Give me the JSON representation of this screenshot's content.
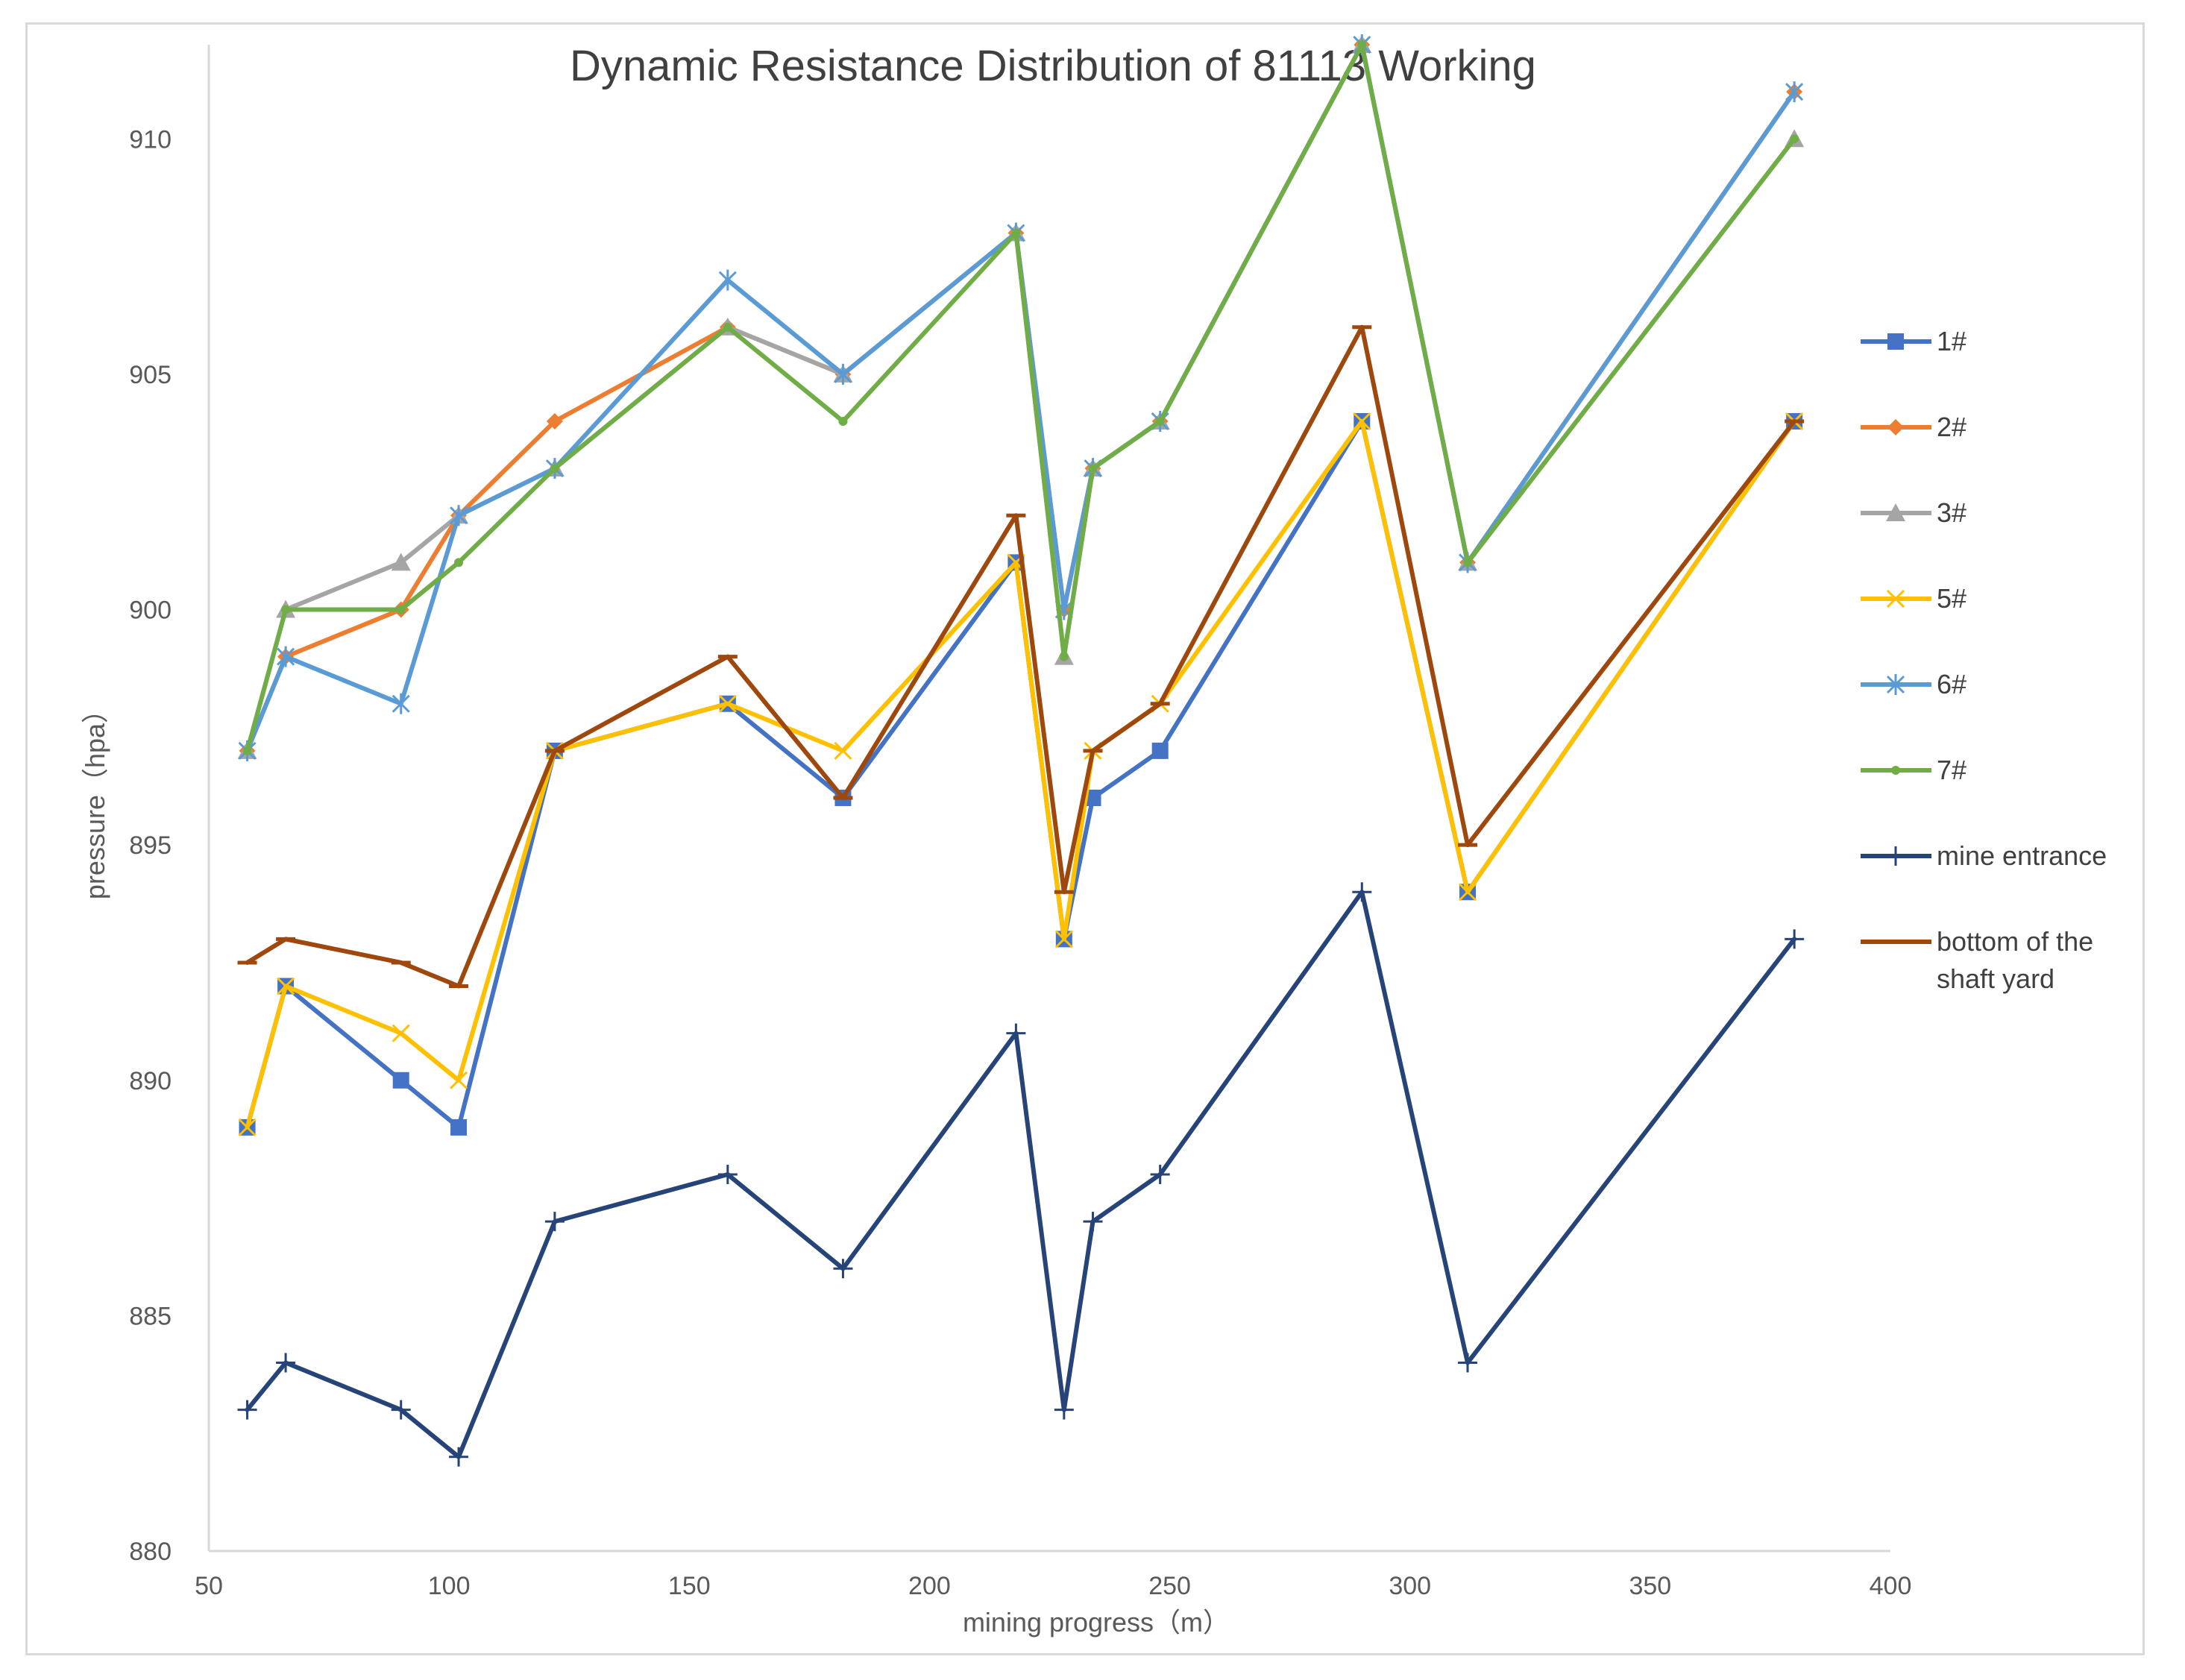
{
  "chart_data": {
    "type": "line",
    "title": "Dynamic Resistance Distribution of 81113 Working",
    "xlabel": "mining progress（m）",
    "ylabel": "pressure（hpa）",
    "xlim": [
      50,
      400
    ],
    "ylim": [
      880,
      912
    ],
    "xticks": [
      50,
      100,
      150,
      200,
      250,
      300,
      350,
      400
    ],
    "yticks": [
      880,
      885,
      890,
      895,
      900,
      905,
      910
    ],
    "grid": false,
    "legend_position": "right",
    "x": [
      58,
      66,
      90,
      102,
      122,
      158,
      182,
      218,
      228,
      234,
      248,
      290,
      312,
      380
    ],
    "series": [
      {
        "name": "1#",
        "color": "#4472c4",
        "marker": "square",
        "values": [
          889,
          892,
          890,
          889,
          897,
          898,
          896,
          901,
          893,
          896,
          897,
          904,
          894,
          904
        ]
      },
      {
        "name": "2#",
        "color": "#ed7d31",
        "marker": "diamond",
        "values": [
          897,
          899,
          900,
          902,
          904,
          906,
          905,
          908,
          900,
          903,
          904,
          912,
          901,
          911
        ]
      },
      {
        "name": "3#",
        "color": "#a5a5a5",
        "marker": "triangle",
        "values": [
          897,
          900,
          901,
          902,
          903,
          906,
          905,
          908,
          899,
          903,
          904,
          912,
          901,
          910
        ]
      },
      {
        "name": "5#",
        "color": "#ffc000",
        "marker": "x",
        "values": [
          889,
          892,
          891,
          890,
          897,
          898,
          897,
          901,
          893,
          897,
          898,
          904,
          894,
          904
        ]
      },
      {
        "name": "6#",
        "color": "#5b9bd5",
        "marker": "star",
        "values": [
          897,
          899,
          898,
          902,
          903,
          907,
          905,
          908,
          900,
          903,
          904,
          912,
          901,
          911
        ]
      },
      {
        "name": "7#",
        "color": "#70ad47",
        "marker": "dot",
        "values": [
          897,
          900,
          900,
          901,
          903,
          906,
          904,
          908,
          899,
          903,
          904,
          912,
          901,
          910
        ]
      },
      {
        "name": "mine entrance",
        "color": "#264478",
        "marker": "plus",
        "values": [
          883,
          884,
          883,
          882,
          887,
          888,
          886,
          891,
          883,
          887,
          888,
          894,
          884,
          893
        ]
      },
      {
        "name": "bottom of the shaft yard",
        "color": "#9e480e",
        "marker": "dash",
        "values": [
          892.5,
          893,
          892.5,
          892,
          897,
          899,
          896,
          902,
          894,
          897,
          898,
          906,
          895,
          904
        ]
      }
    ]
  }
}
